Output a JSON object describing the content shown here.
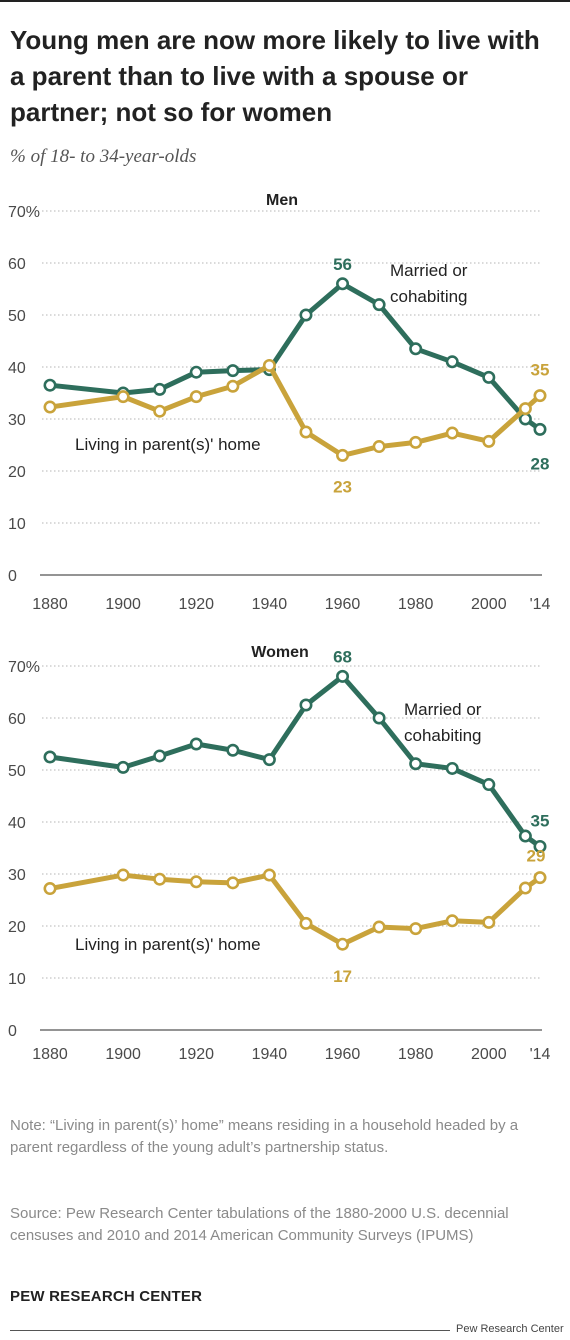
{
  "title": "Young men are now more likely to live with a parent than to live with a spouse or partner; not so for women",
  "subtitle": "% of 18- to 34-year-olds",
  "colors": {
    "married": "#2e6e5c",
    "parents": "#c9a33b",
    "grid": "#b5b5b5",
    "axis": "#555555"
  },
  "chart_data": [
    {
      "type": "line",
      "title": "Men",
      "x": [
        1880,
        1900,
        1910,
        1920,
        1930,
        1940,
        1950,
        1960,
        1970,
        1980,
        1990,
        2000,
        2010,
        2014
      ],
      "x_tick_labels": [
        "1880",
        "1900",
        "1920",
        "1940",
        "1960",
        "1980",
        "2000",
        "'14"
      ],
      "y_tick_labels": [
        "70%",
        "60",
        "50",
        "40",
        "30",
        "20",
        "10",
        "0"
      ],
      "ylim": [
        0,
        70
      ],
      "grid": true,
      "series": [
        {
          "name": "Married or cohabiting",
          "name_lines": [
            "Married or",
            "cohabiting"
          ],
          "color": "#2e6e5c",
          "values": [
            36.5,
            35,
            35.7,
            39,
            39.3,
            39.5,
            50,
            56,
            52,
            43.5,
            41,
            38,
            30,
            28
          ],
          "callouts": [
            {
              "label": "56",
              "index": 7
            },
            {
              "label": "28",
              "index": 13
            }
          ]
        },
        {
          "name": "Living in parent(s)' home",
          "name_lines": [
            "Living in parent(s)' home"
          ],
          "color": "#c9a33b",
          "values": [
            32.3,
            34.3,
            31.5,
            34.3,
            36.3,
            40.3,
            27.5,
            23,
            24.7,
            25.5,
            27.3,
            25.7,
            32,
            34.5
          ],
          "callouts": [
            {
              "label": "23",
              "index": 7
            },
            {
              "label": "35",
              "index": 13
            }
          ]
        }
      ]
    },
    {
      "type": "line",
      "title": "Women",
      "x": [
        1880,
        1900,
        1910,
        1920,
        1930,
        1940,
        1950,
        1960,
        1970,
        1980,
        1990,
        2000,
        2010,
        2014
      ],
      "x_tick_labels": [
        "1880",
        "1900",
        "1920",
        "1940",
        "1960",
        "1980",
        "2000",
        "'14"
      ],
      "y_tick_labels": [
        "70%",
        "60",
        "50",
        "40",
        "30",
        "20",
        "10",
        "0"
      ],
      "ylim": [
        0,
        70
      ],
      "grid": true,
      "series": [
        {
          "name": "Married or cohabiting",
          "name_lines": [
            "Married or",
            "cohabiting"
          ],
          "color": "#2e6e5c",
          "values": [
            52.5,
            50.5,
            52.7,
            55,
            53.8,
            52,
            62.5,
            68,
            60,
            51.2,
            50.3,
            47.2,
            37.3,
            35.3
          ],
          "callouts": [
            {
              "label": "68",
              "index": 7
            },
            {
              "label": "35",
              "index": 13
            }
          ]
        },
        {
          "name": "Living in parent(s)' home",
          "name_lines": [
            "Living in parent(s)' home"
          ],
          "color": "#c9a33b",
          "values": [
            27.2,
            29.8,
            29,
            28.5,
            28.3,
            29.8,
            20.5,
            16.5,
            19.8,
            19.5,
            21,
            20.7,
            27.3,
            29.3
          ],
          "callouts": [
            {
              "label": "17",
              "index": 7
            },
            {
              "label": "29",
              "index": 13
            }
          ]
        }
      ]
    }
  ],
  "note": "Note: “Living in parent(s)’ home” means residing in a household headed by a parent regardless of the young adult’s partnership status.",
  "source": "Source: Pew Research Center tabulations of the 1880-2000 U.S. decennial censuses and 2010 and 2014 American Community Surveys (IPUMS)",
  "org": "PEW RESEARCH CENTER",
  "credit": "Pew Research Center"
}
